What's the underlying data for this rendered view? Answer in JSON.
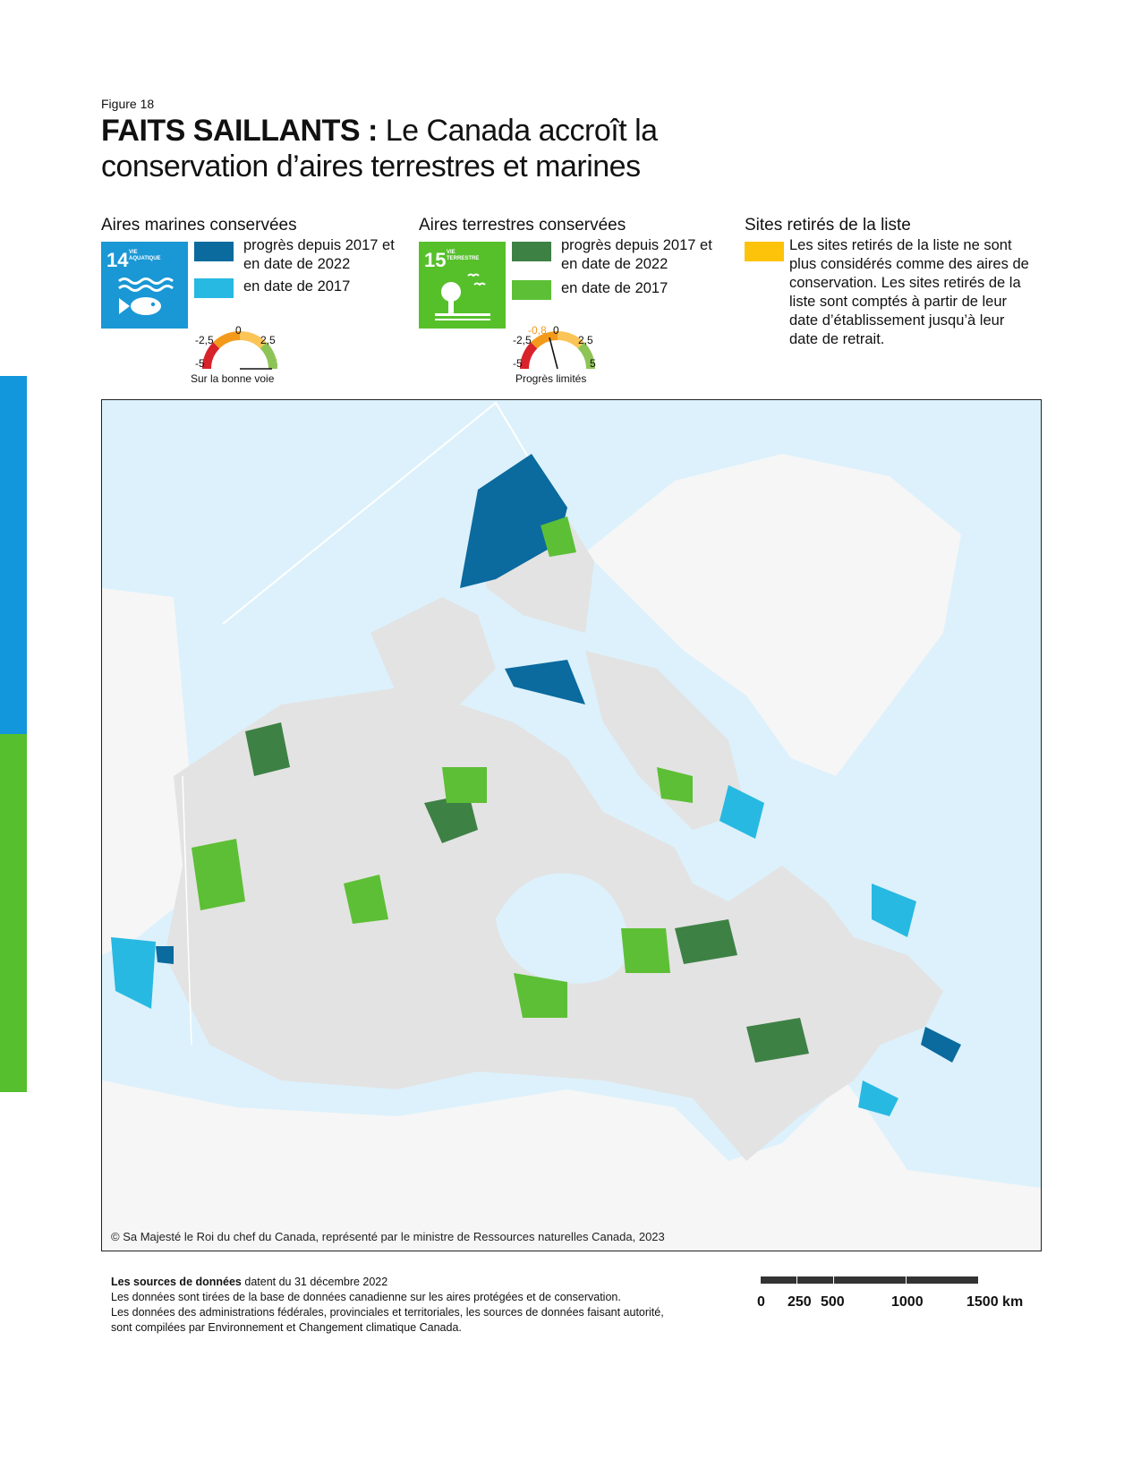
{
  "figure_label": "Figure 18",
  "title": {
    "bold_part": "FAITS SAILLANTS :",
    "rest_part": " Le Canada accroît la conservation d’aires terrestres et marines"
  },
  "legend": {
    "marine": {
      "heading": "Aires marines conservées",
      "sdg_number": "14",
      "sdg_goal": "VIE AQUATIQUE",
      "sdg_color": "#1a97d5",
      "items": [
        {
          "label": "progrès depuis 2017 et en date de 2022",
          "color": "#0b6a9e"
        },
        {
          "label": "en date de 2017",
          "color": "#27b9e2"
        }
      ],
      "gauge": {
        "min": "-5",
        "low": "-2,5",
        "mid": "0",
        "high": "2,5",
        "max": "5",
        "value": 5,
        "status": "Sur la bonne voie"
      }
    },
    "terrestrial": {
      "heading": "Aires terrestres conservées",
      "sdg_number": "15",
      "sdg_goal": "VIE TERRESTRE",
      "sdg_color": "#56c02b",
      "items": [
        {
          "label": "progrès depuis 2017 et en date de 2022",
          "color": "#3e8145"
        },
        {
          "label": "en date de 2017",
          "color": "#5dbf35"
        }
      ],
      "gauge": {
        "min": "-5",
        "low": "-2,5",
        "mid": "0",
        "high": "2,5",
        "max": "5",
        "value": -0.8,
        "value_label": "-0,8",
        "status": "Progrès limités"
      }
    },
    "removed": {
      "heading": "Sites retirés de la liste",
      "color": "#fdc30a",
      "text": "Les sites retirés de la liste ne sont plus considérés comme des aires de conservation. Les sites retirés de la liste sont comptés à partir de leur date d’établissement jusqu’à leur date de retrait."
    }
  },
  "map": {
    "copyright": "© Sa Majesté le Roi du chef du Canada, représenté par le ministre de Ressources naturelles Canada, 2023",
    "colors": {
      "water": "#dcf1fb",
      "land": "#e3e3e3",
      "foreign_land": "#f6f6f6",
      "border": "#ffffff"
    }
  },
  "sources": {
    "bold": "Les sources de données",
    "date_text": " datent du 31 décembre 2022",
    "lines": [
      "Les données sont tirées de la base de données canadienne sur les aires protégées et de conservation.",
      "Les données des administrations fédérales, provinciales et territoriales, les sources de données faisant autorité, sont compilées par Environnement et Changement climatique Canada."
    ]
  },
  "scale_bar": {
    "labels": [
      "0",
      "250",
      "500",
      "1000",
      "1500 km"
    ]
  }
}
